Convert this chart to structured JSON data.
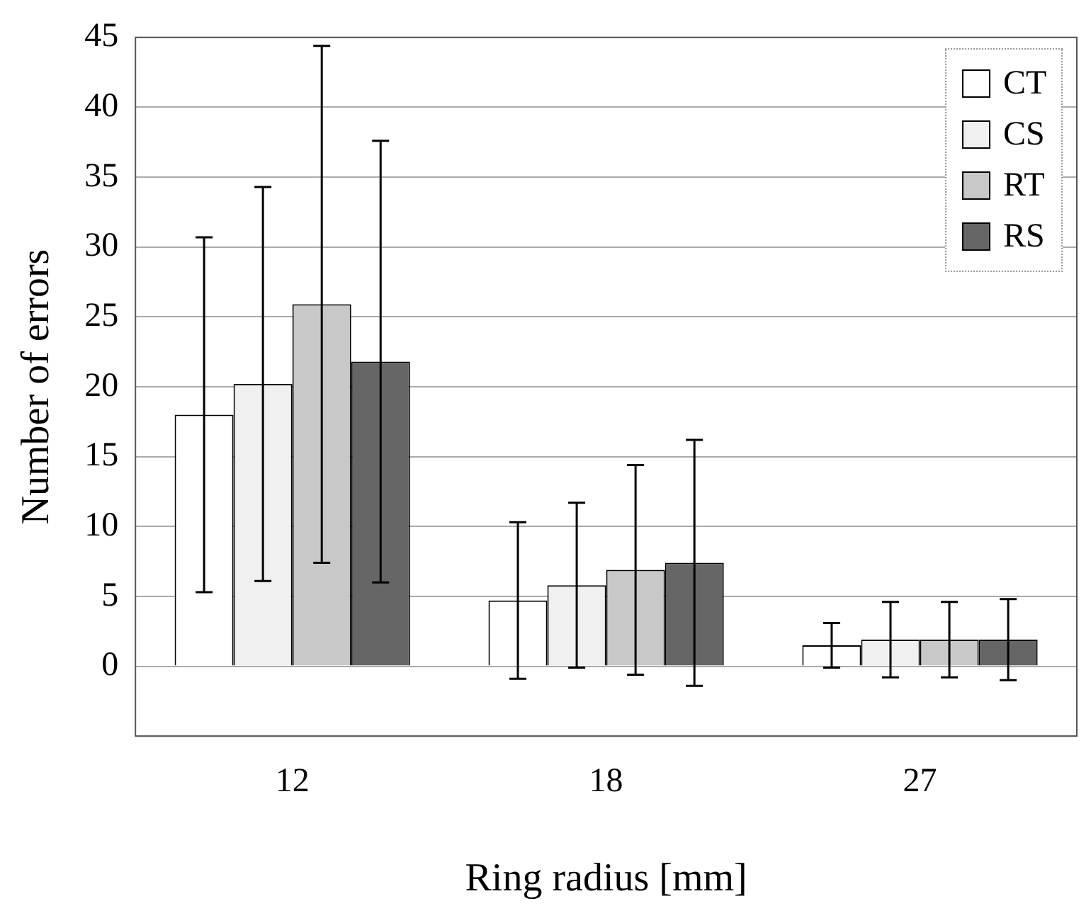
{
  "chart_data": {
    "type": "bar",
    "xlabel": "Ring radius [mm]",
    "ylabel": "Number of errors",
    "categories": [
      "12",
      "18",
      "27"
    ],
    "series": [
      {
        "name": "CT",
        "color": "#ffffff",
        "values": [
          18,
          4.7,
          1.5
        ],
        "errors": [
          12.7,
          5.6,
          1.6
        ]
      },
      {
        "name": "CS",
        "color": "#f0f0f0",
        "values": [
          20.2,
          5.8,
          1.9
        ],
        "errors": [
          14.1,
          5.9,
          2.7
        ]
      },
      {
        "name": "RT",
        "color": "#c8c8c8",
        "values": [
          25.9,
          6.9,
          1.9
        ],
        "errors": [
          18.5,
          7.5,
          2.7
        ]
      },
      {
        "name": "RS",
        "color": "#666666",
        "values": [
          21.8,
          7.4,
          1.9
        ],
        "errors": [
          15.8,
          8.8,
          2.9
        ]
      }
    ],
    "ylim": [
      -5,
      45
    ],
    "yticks": [
      {
        "value": -5,
        "label": null
      },
      0,
      5,
      10,
      15,
      20,
      25,
      30,
      35,
      40,
      45
    ],
    "grid": "y",
    "legend": "top right"
  }
}
